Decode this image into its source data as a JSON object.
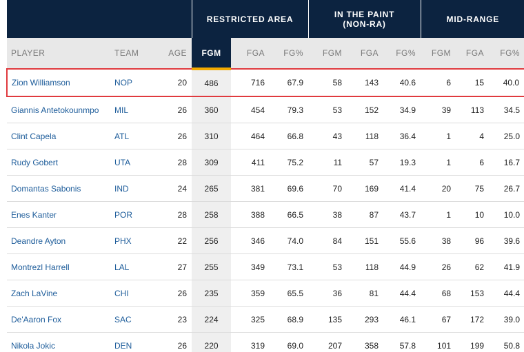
{
  "groups": [
    {
      "label": "RESTRICTED AREA"
    },
    {
      "label": "IN THE PAINT\n(NON-RA)"
    },
    {
      "label": "MID-RANGE"
    }
  ],
  "columns": [
    "PLAYER",
    "TEAM",
    "AGE",
    "FGM",
    "FGA",
    "FG%",
    "FGM",
    "FGA",
    "FG%",
    "FGM",
    "FGA",
    "FG%"
  ],
  "sorted_column": "FGM",
  "colors": {
    "header_bg": "#0c2340",
    "sort_accent": "#f2a900",
    "link": "#1d5c9a",
    "selection": "#e03a3e"
  },
  "rows": [
    {
      "player": "Zion Williamson",
      "team": "NOP",
      "age": "20",
      "ra_fgm": "486",
      "ra_fga": "716",
      "ra_fgp": "67.9",
      "paint_fgm": "58",
      "paint_fga": "143",
      "paint_fgp": "40.6",
      "mid_fgm": "6",
      "mid_fga": "15",
      "mid_fgp": "40.0"
    },
    {
      "player": "Giannis Antetokounmpo",
      "team": "MIL",
      "age": "26",
      "ra_fgm": "360",
      "ra_fga": "454",
      "ra_fgp": "79.3",
      "paint_fgm": "53",
      "paint_fga": "152",
      "paint_fgp": "34.9",
      "mid_fgm": "39",
      "mid_fga": "113",
      "mid_fgp": "34.5"
    },
    {
      "player": "Clint Capela",
      "team": "ATL",
      "age": "26",
      "ra_fgm": "310",
      "ra_fga": "464",
      "ra_fgp": "66.8",
      "paint_fgm": "43",
      "paint_fga": "118",
      "paint_fgp": "36.4",
      "mid_fgm": "1",
      "mid_fga": "4",
      "mid_fgp": "25.0"
    },
    {
      "player": "Rudy Gobert",
      "team": "UTA",
      "age": "28",
      "ra_fgm": "309",
      "ra_fga": "411",
      "ra_fgp": "75.2",
      "paint_fgm": "11",
      "paint_fga": "57",
      "paint_fgp": "19.3",
      "mid_fgm": "1",
      "mid_fga": "6",
      "mid_fgp": "16.7"
    },
    {
      "player": "Domantas Sabonis",
      "team": "IND",
      "age": "24",
      "ra_fgm": "265",
      "ra_fga": "381",
      "ra_fgp": "69.6",
      "paint_fgm": "70",
      "paint_fga": "169",
      "paint_fgp": "41.4",
      "mid_fgm": "20",
      "mid_fga": "75",
      "mid_fgp": "26.7"
    },
    {
      "player": "Enes Kanter",
      "team": "POR",
      "age": "28",
      "ra_fgm": "258",
      "ra_fga": "388",
      "ra_fgp": "66.5",
      "paint_fgm": "38",
      "paint_fga": "87",
      "paint_fgp": "43.7",
      "mid_fgm": "1",
      "mid_fga": "10",
      "mid_fgp": "10.0"
    },
    {
      "player": "Deandre Ayton",
      "team": "PHX",
      "age": "22",
      "ra_fgm": "256",
      "ra_fga": "346",
      "ra_fgp": "74.0",
      "paint_fgm": "84",
      "paint_fga": "151",
      "paint_fgp": "55.6",
      "mid_fgm": "38",
      "mid_fga": "96",
      "mid_fgp": "39.6"
    },
    {
      "player": "Montrezl Harrell",
      "team": "LAL",
      "age": "27",
      "ra_fgm": "255",
      "ra_fga": "349",
      "ra_fgp": "73.1",
      "paint_fgm": "53",
      "paint_fga": "118",
      "paint_fgp": "44.9",
      "mid_fgm": "26",
      "mid_fga": "62",
      "mid_fgp": "41.9"
    },
    {
      "player": "Zach LaVine",
      "team": "CHI",
      "age": "26",
      "ra_fgm": "235",
      "ra_fga": "359",
      "ra_fgp": "65.5",
      "paint_fgm": "36",
      "paint_fga": "81",
      "paint_fgp": "44.4",
      "mid_fgm": "68",
      "mid_fga": "153",
      "mid_fgp": "44.4"
    },
    {
      "player": "De'Aaron Fox",
      "team": "SAC",
      "age": "23",
      "ra_fgm": "224",
      "ra_fga": "325",
      "ra_fgp": "68.9",
      "paint_fgm": "135",
      "paint_fga": "293",
      "paint_fgp": "46.1",
      "mid_fgm": "67",
      "mid_fga": "172",
      "mid_fgp": "39.0"
    },
    {
      "player": "Nikola Jokic",
      "team": "DEN",
      "age": "26",
      "ra_fgm": "220",
      "ra_fga": "319",
      "ra_fgp": "69.0",
      "paint_fgm": "207",
      "paint_fga": "358",
      "paint_fgp": "57.8",
      "mid_fgm": "101",
      "mid_fga": "199",
      "mid_fgp": "50.8"
    }
  ]
}
